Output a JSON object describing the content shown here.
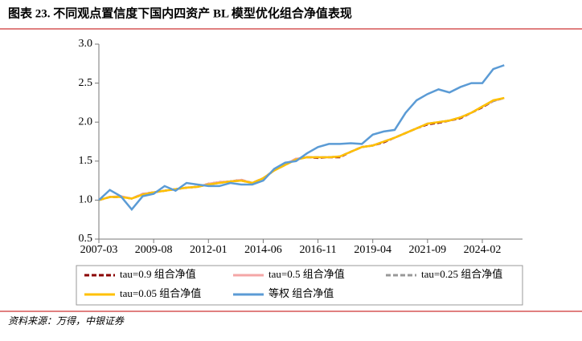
{
  "chart_data": {
    "type": "line",
    "title": "图表 23. 不同观点置信度下国内四资产 BL 模型优化组合净值表现",
    "source": "资料来源：万得，中银证券",
    "x": [
      "2007-03",
      null,
      null,
      null,
      null,
      "2009-08",
      null,
      null,
      null,
      null,
      "2012-01",
      null,
      null,
      null,
      null,
      "2014-06",
      null,
      null,
      null,
      null,
      "2016-11",
      null,
      null,
      null,
      null,
      "2019-04",
      null,
      null,
      null,
      null,
      "2021-09",
      null,
      null,
      null,
      null,
      "2024-02",
      null,
      null
    ],
    "ylim": [
      0.5,
      3.0
    ],
    "yticks": [
      {
        "value": 0.5,
        "label": "0.5"
      },
      {
        "value": 1.0,
        "label": "1.0"
      },
      {
        "value": 1.5,
        "label": "1.5"
      },
      {
        "value": 2.0,
        "label": "2.0"
      },
      {
        "value": 2.5,
        "label": "2.5"
      },
      {
        "value": 3.0,
        "label": "3.0"
      }
    ],
    "grid": false,
    "series": [
      {
        "name": "tau=0.9 组合净值",
        "color": "#8b0000",
        "dashed": true,
        "values": [
          1.0,
          1.04,
          1.04,
          1.02,
          1.08,
          1.1,
          1.12,
          1.14,
          1.16,
          1.17,
          1.21,
          1.23,
          1.24,
          1.26,
          1.22,
          1.28,
          1.38,
          1.46,
          1.53,
          1.55,
          1.54,
          1.55,
          1.55,
          1.62,
          1.68,
          1.7,
          1.74,
          1.8,
          1.86,
          1.92,
          1.97,
          1.99,
          2.02,
          2.05,
          2.12,
          2.19,
          2.27,
          2.31
        ]
      },
      {
        "name": "tau=0.5 组合净值",
        "color": "#f4a6a6",
        "dashed": false,
        "values": [
          1.0,
          1.04,
          1.05,
          1.02,
          1.08,
          1.1,
          1.12,
          1.14,
          1.16,
          1.17,
          1.21,
          1.23,
          1.24,
          1.26,
          1.22,
          1.28,
          1.38,
          1.46,
          1.53,
          1.55,
          1.55,
          1.55,
          1.56,
          1.62,
          1.68,
          1.7,
          1.75,
          1.8,
          1.86,
          1.92,
          1.98,
          2.0,
          2.02,
          2.06,
          2.12,
          2.2,
          2.27,
          2.31
        ]
      },
      {
        "name": "tau=0.25 组合净值",
        "color": "#999999",
        "dashed": true,
        "values": [
          1.0,
          1.04,
          1.04,
          1.02,
          1.07,
          1.1,
          1.12,
          1.14,
          1.16,
          1.17,
          1.2,
          1.22,
          1.24,
          1.25,
          1.22,
          1.28,
          1.38,
          1.45,
          1.52,
          1.55,
          1.55,
          1.55,
          1.56,
          1.62,
          1.68,
          1.7,
          1.75,
          1.8,
          1.86,
          1.92,
          1.98,
          2.0,
          2.02,
          2.06,
          2.12,
          2.2,
          2.27,
          2.31
        ]
      },
      {
        "name": "tau=0.05 组合净值",
        "color": "#ffc000",
        "dashed": false,
        "values": [
          1.0,
          1.04,
          1.04,
          1.02,
          1.07,
          1.1,
          1.12,
          1.14,
          1.16,
          1.17,
          1.2,
          1.22,
          1.24,
          1.25,
          1.22,
          1.28,
          1.38,
          1.45,
          1.52,
          1.55,
          1.55,
          1.55,
          1.56,
          1.62,
          1.68,
          1.7,
          1.75,
          1.8,
          1.86,
          1.92,
          1.98,
          2.0,
          2.02,
          2.06,
          2.12,
          2.2,
          2.28,
          2.31
        ]
      },
      {
        "name": "等权 组合净值",
        "color": "#5b9bd5",
        "dashed": false,
        "values": [
          1.0,
          1.13,
          1.05,
          0.88,
          1.05,
          1.08,
          1.18,
          1.12,
          1.22,
          1.2,
          1.18,
          1.18,
          1.22,
          1.2,
          1.2,
          1.25,
          1.4,
          1.48,
          1.5,
          1.6,
          1.68,
          1.72,
          1.72,
          1.73,
          1.72,
          1.84,
          1.88,
          1.9,
          2.12,
          2.28,
          2.36,
          2.42,
          2.38,
          2.45,
          2.5,
          2.5,
          2.68,
          2.73
        ]
      }
    ]
  }
}
